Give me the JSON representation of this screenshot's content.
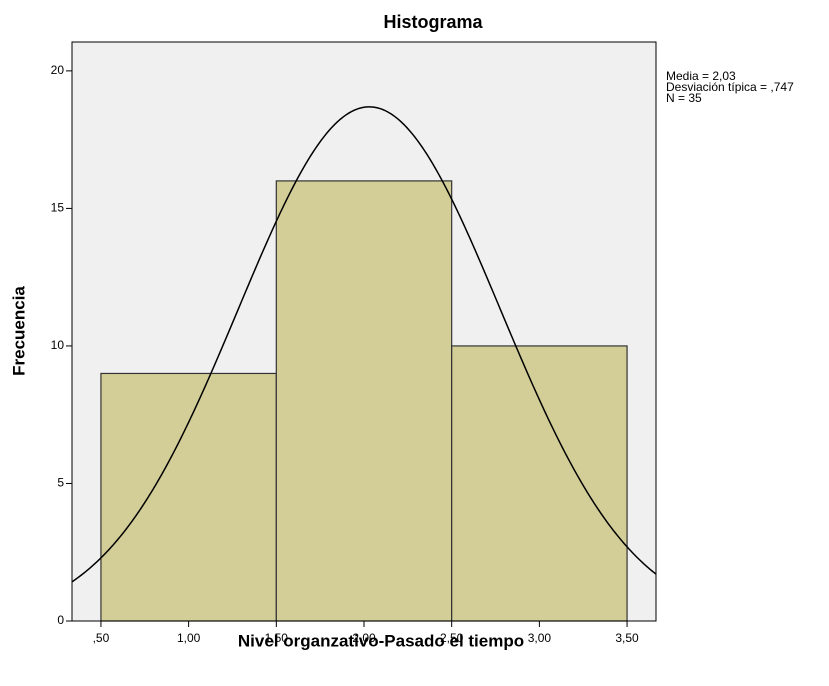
{
  "chart_data": {
    "type": "histogram",
    "title": "Histograma",
    "x_label": "Nivel organzativo-Pasado el tiempo",
    "y_label": "Frecuencia",
    "bins": [
      0.5,
      1.5,
      2.5,
      3.5
    ],
    "counts": [
      9,
      16,
      10
    ],
    "color": "#d3ce97",
    "xlim": [
      0.335,
      3.665
    ],
    "ylim": [
      0,
      21.05
    ],
    "xticks": [
      {
        "value": 0.5,
        "label": ",50"
      },
      {
        "value": 1,
        "label": "1,00"
      },
      {
        "value": 1.5,
        "label": "1,50"
      },
      {
        "value": 2,
        "label": "2,00"
      },
      {
        "value": 2.5,
        "label": "2,50"
      },
      {
        "value": 3,
        "label": "3,00"
      },
      {
        "value": 3.5,
        "label": "3,50"
      }
    ],
    "yticks": [
      0,
      5,
      10,
      15,
      20
    ],
    "stats": [
      {
        "value": 2.03,
        "label": "Media = 2,03"
      },
      {
        "value": 0.747,
        "label": "Desviación típica = ,747"
      },
      {
        "value": 35,
        "label": "N = 35"
      }
    ],
    "normal_curve": true
  }
}
